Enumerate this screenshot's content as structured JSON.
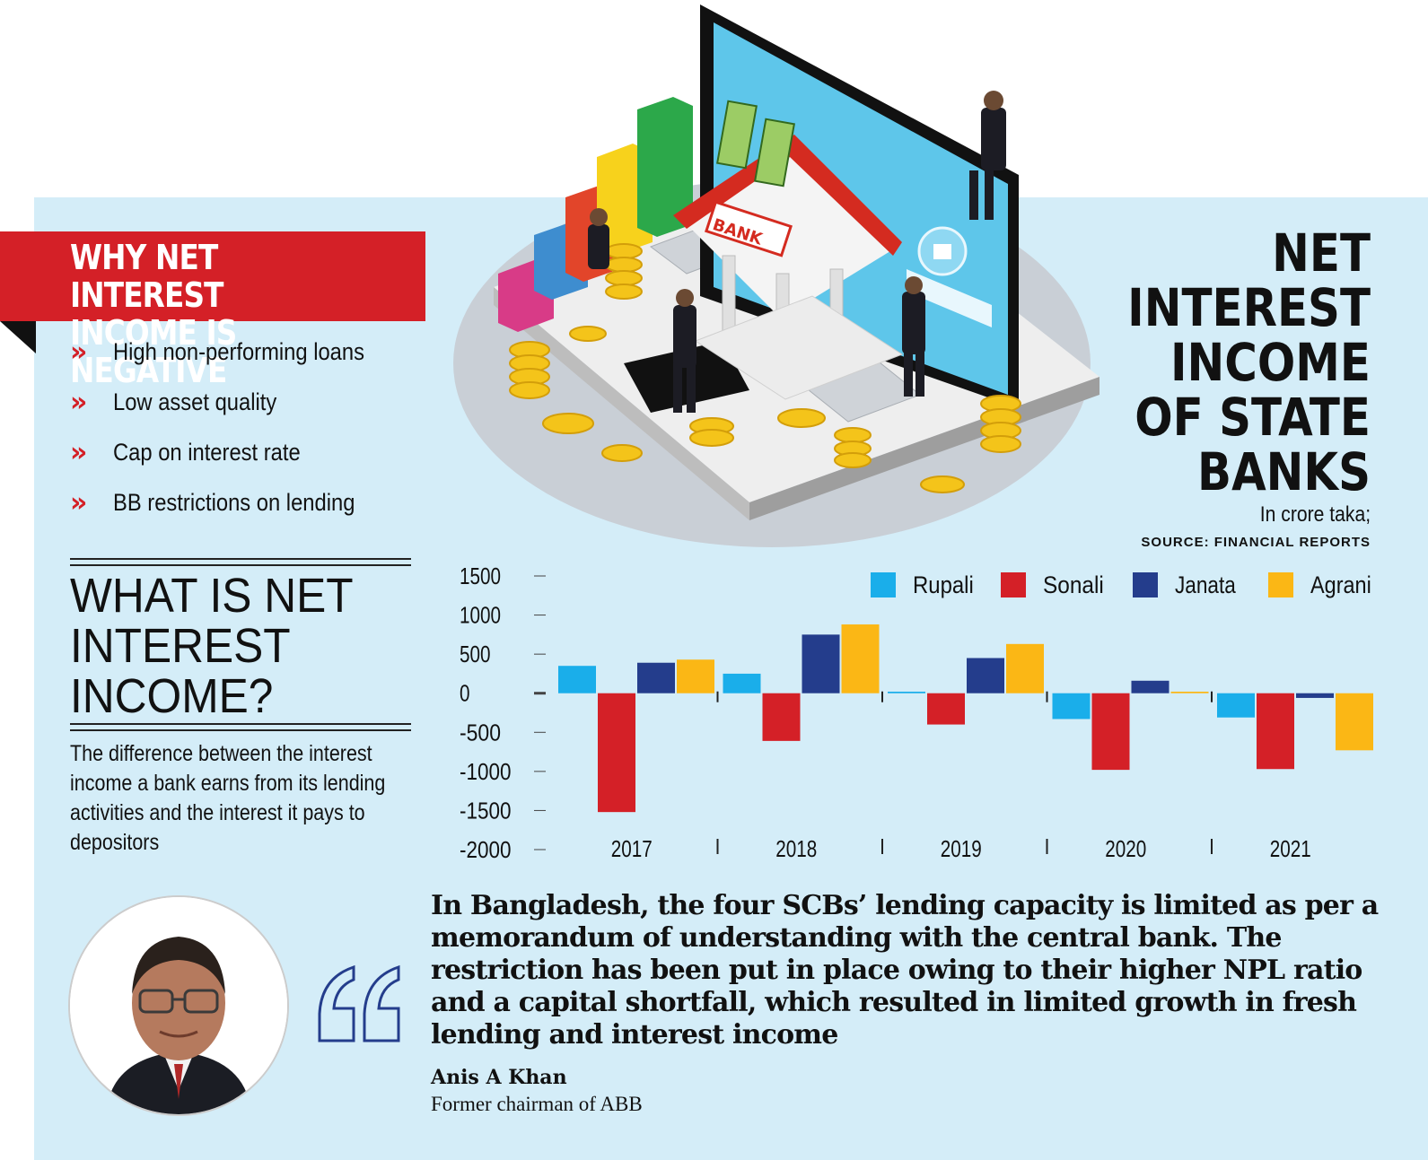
{
  "reasons_panel": {
    "title": "WHY NET INTEREST\nINCOME IS NEGATIVE",
    "items": [
      "High non-performing loans",
      "Low asset quality",
      "Cap on interest rate",
      "BB restrictions on lending"
    ]
  },
  "definition": {
    "title": "WHAT IS NET\nINTEREST\nINCOME?",
    "body": "The difference between the interest income a bank earns from its lending activities and the interest it pays to depositors"
  },
  "illustration": {
    "sign_text": "BANK"
  },
  "chart_data": {
    "type": "bar",
    "title": "NET\nINTEREST\nINCOME\nOF STATE\nBANKS",
    "unit_note": "In crore taka;",
    "source": "SOURCE: FINANCIAL REPORTS",
    "categories": [
      "2017",
      "2018",
      "2019",
      "2020",
      "2021"
    ],
    "ylim": [
      -2000,
      1500
    ],
    "yticks": [
      "1500",
      "1000",
      "500",
      "0",
      "-500",
      "-1000",
      "-1500",
      "-2000"
    ],
    "legend_position": "top-right",
    "series": [
      {
        "name": "Rupali",
        "color": "#1aaeea",
        "values": [
          350,
          250,
          20,
          -330,
          -310
        ]
      },
      {
        "name": "Sonali",
        "color": "#d42027",
        "values": [
          -1520,
          -610,
          -400,
          -980,
          -970
        ]
      },
      {
        "name": "Janata",
        "color": "#243d8c",
        "values": [
          390,
          750,
          450,
          160,
          -60
        ]
      },
      {
        "name": "Agrani",
        "color": "#fbb715",
        "values": [
          430,
          880,
          630,
          20,
          -730
        ]
      }
    ]
  },
  "quote": {
    "text": "In Bangladesh, the four SCBs’ lending capacity is limited as per a memorandum of understanding with the central bank. The restriction has been put in place owing to their higher NPL ratio and a capital shortfall, which resulted in limited growth in fresh lending and interest income",
    "author": "Anis A Khan",
    "role": "Former chairman of ABB"
  }
}
